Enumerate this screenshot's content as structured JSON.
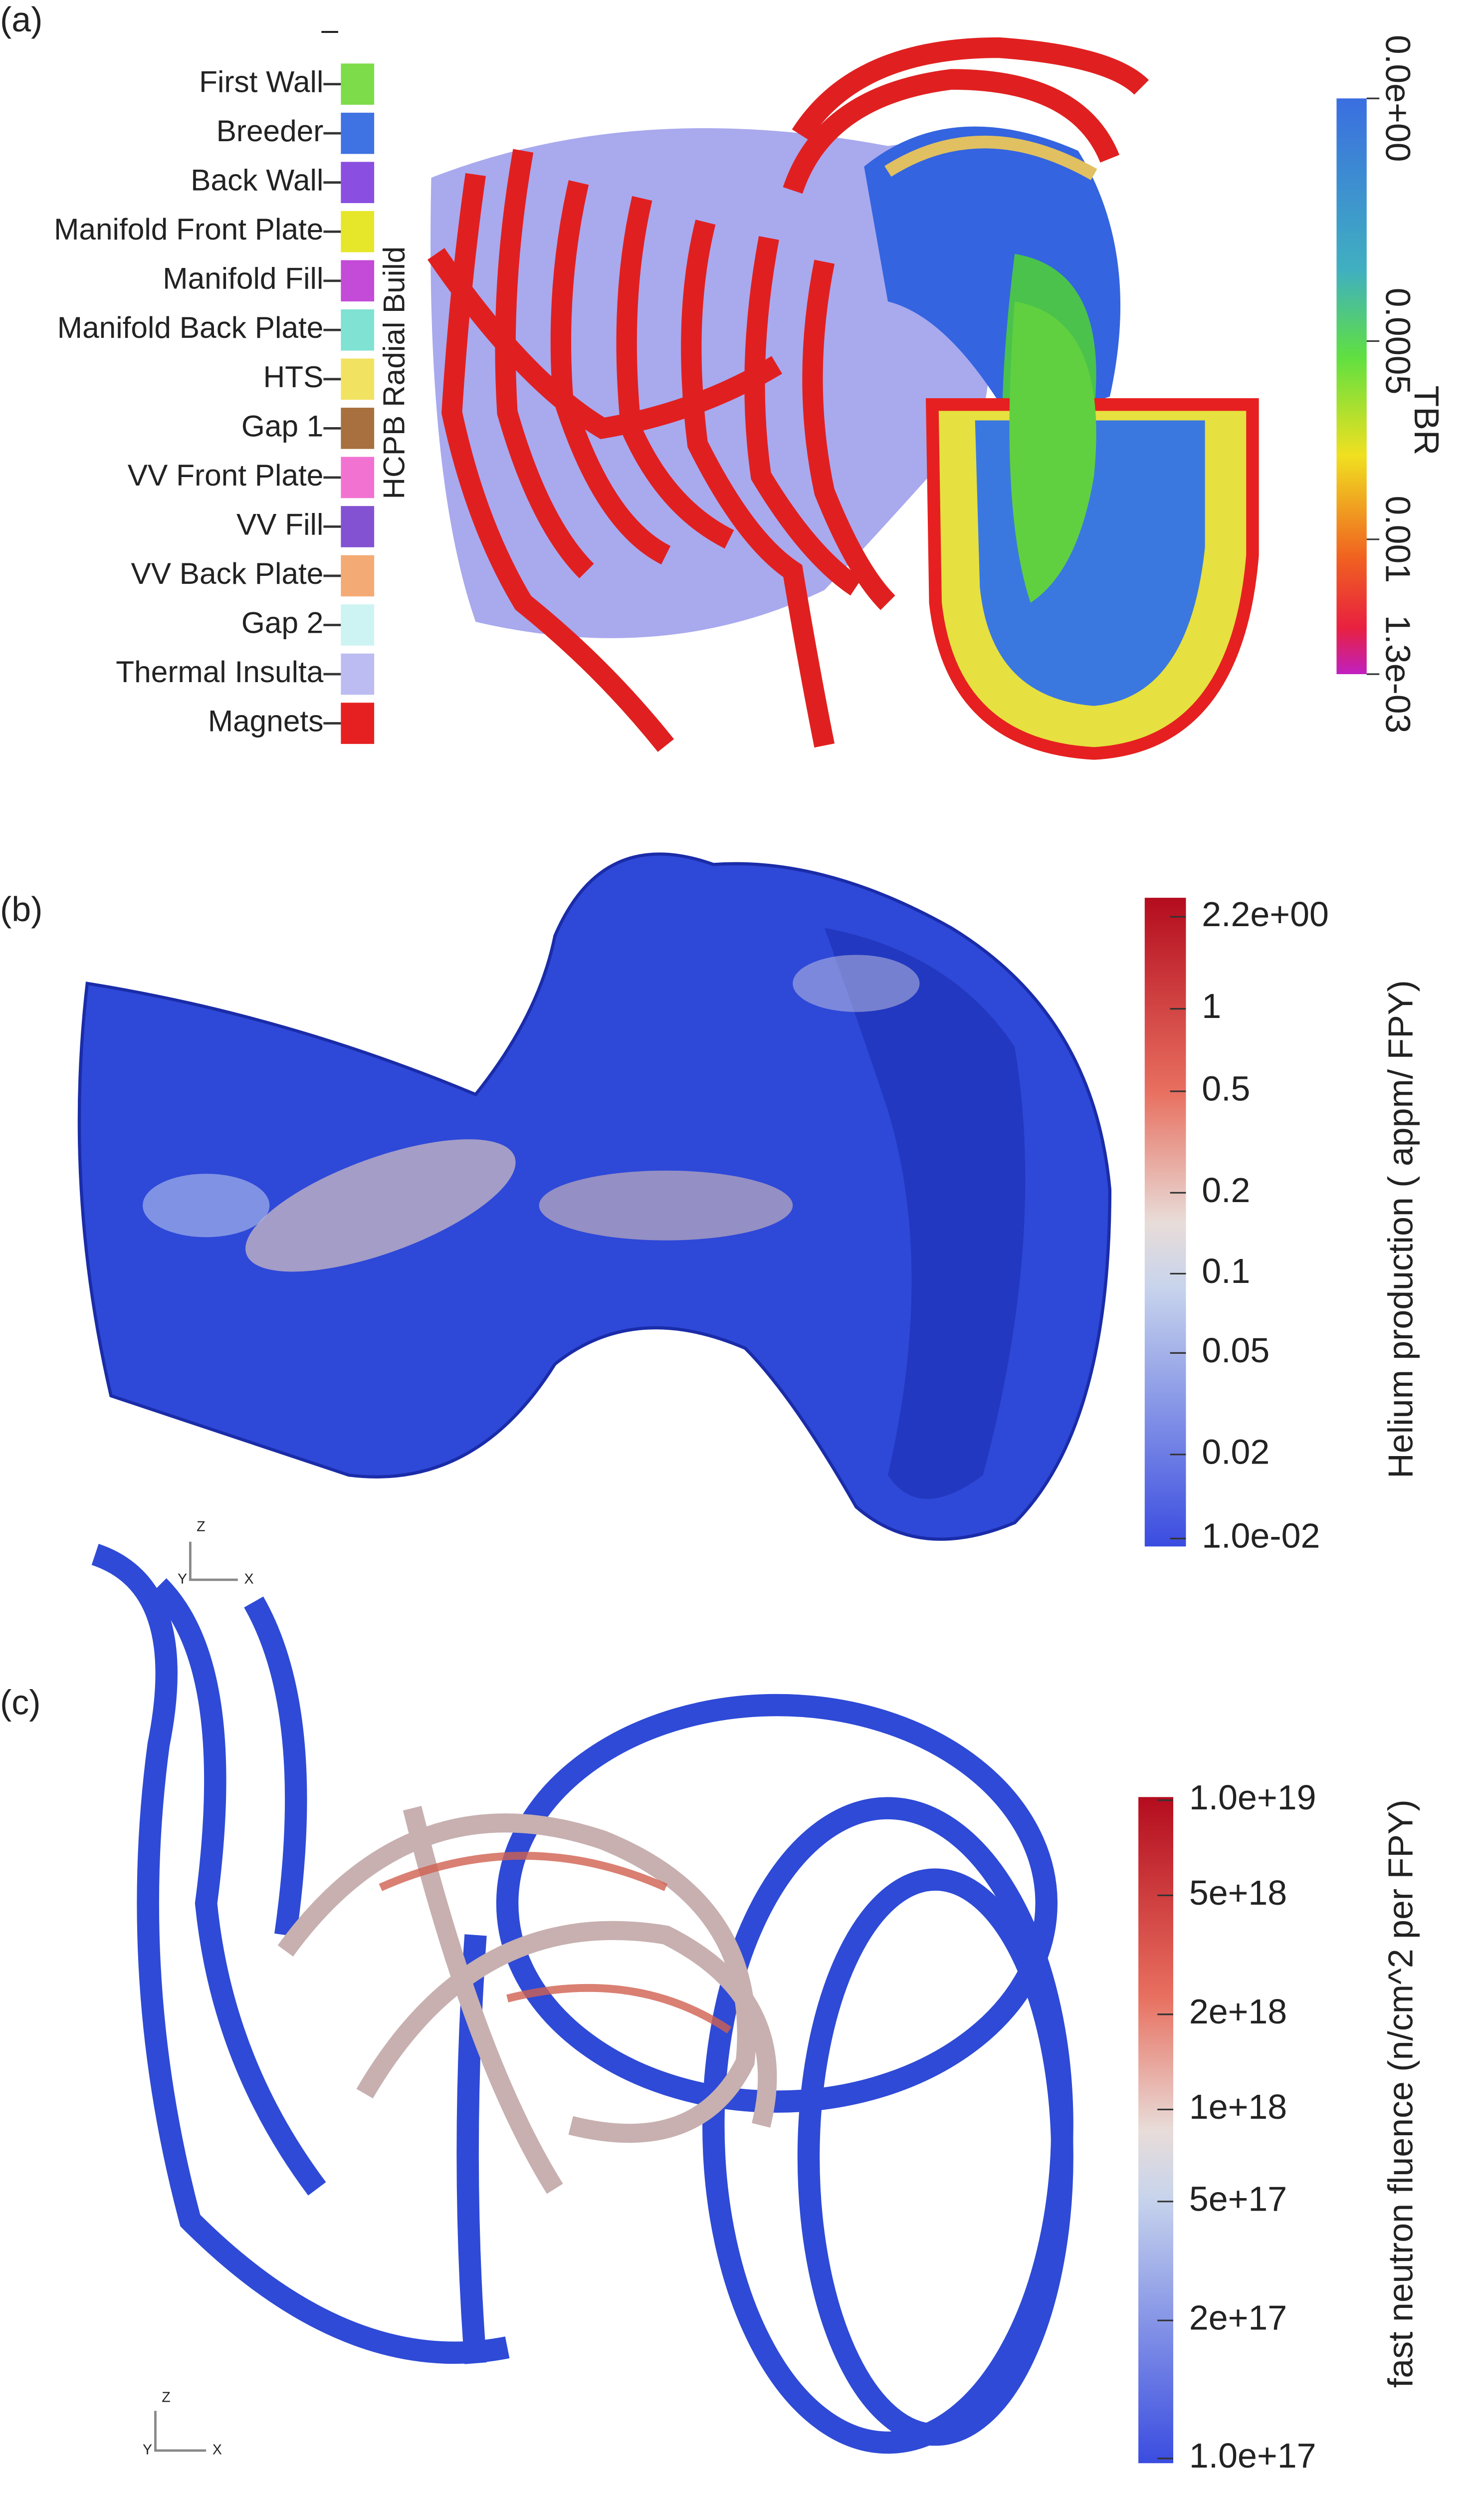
{
  "panels": [
    {
      "label": "(a)",
      "legend": {
        "title": "HCPB Radial Build",
        "dash": "–",
        "items": [
          {
            "label": "First Wall",
            "color": "#7ddc4a"
          },
          {
            "label": "Breeder",
            "color": "#3f72e2"
          },
          {
            "label": "Back Wall",
            "color": "#8a4fe0"
          },
          {
            "label": "Manifold Front Plate",
            "color": "#e6e62a"
          },
          {
            "label": "Manifold Fill",
            "color": "#c44ad8"
          },
          {
            "label": "Manifold Back Plate",
            "color": "#7fe2d2"
          },
          {
            "label": "HTS",
            "color": "#f2e262"
          },
          {
            "label": "Gap 1",
            "color": "#a8703e"
          },
          {
            "label": "VV Front Plate",
            "color": "#f272d2"
          },
          {
            "label": "VV Fill",
            "color": "#8252d2"
          },
          {
            "label": "VV Back Plate",
            "color": "#f4aa74"
          },
          {
            "label": "Gap 2",
            "color": "#cdf4f2"
          },
          {
            "label": "Thermal Insulta",
            "color": "#bcbcf2"
          },
          {
            "label": "Magnets",
            "color": "#e62020"
          }
        ]
      },
      "colorbar": {
        "title": "TBR",
        "ticks": [
          "0.0e+00",
          "0.0005",
          "0.001",
          "1.3e-03"
        ]
      }
    },
    {
      "label": "(b)",
      "axes": [
        "Z",
        "Y",
        "X"
      ],
      "colorbar": {
        "title": "Helium production ( appm/ FPY)",
        "ticks": [
          "2.2e+00",
          "1",
          "0.5",
          "0.2",
          "0.1",
          "0.05",
          "0.02",
          "1.0e-02"
        ]
      }
    },
    {
      "label": "(c)",
      "axes": [
        "Z",
        "Y",
        "X"
      ],
      "colorbar": {
        "title": "fast neutron fluence (n/cm^2 per FPY)",
        "ticks": [
          "1.0e+19",
          "5e+18",
          "2e+18",
          "1e+18",
          "5e+17",
          "2e+17",
          "1.0e+17"
        ]
      }
    }
  ]
}
